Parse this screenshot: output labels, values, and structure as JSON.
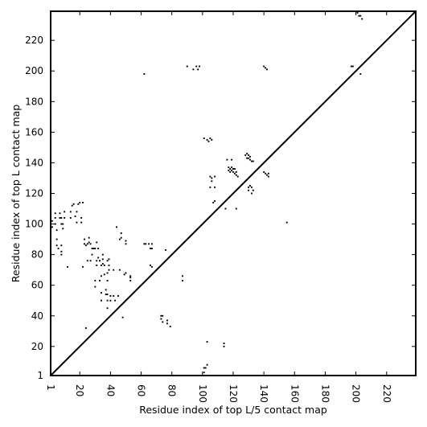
{
  "chart_data": {
    "type": "scatter",
    "title": "",
    "xlabel": "Residue index of top L/5 contact map",
    "ylabel": "Residue index of top L contact map",
    "xlim": [
      1,
      239
    ],
    "ylim": [
      1,
      239
    ],
    "x_ticks": [
      1,
      20,
      40,
      60,
      80,
      100,
      120,
      140,
      160,
      180,
      200,
      220
    ],
    "y_ticks": [
      1,
      20,
      40,
      60,
      80,
      100,
      120,
      140,
      160,
      180,
      200,
      220
    ],
    "x_tick_labels": [
      "1",
      "20",
      "40",
      "60",
      "80",
      "100",
      "120",
      "140",
      "160",
      "180",
      "200",
      "220"
    ],
    "y_tick_labels": [
      "1",
      "20",
      "40",
      "60",
      "80",
      "100",
      "120",
      "140",
      "160",
      "180",
      "200",
      "220"
    ],
    "grid": false,
    "diagonal": true,
    "marker_color": "#000000",
    "series": [
      {
        "values": [
          [
            2,
            98
          ],
          [
            2,
            102
          ],
          [
            4,
            100
          ],
          [
            4,
            104
          ],
          [
            4,
            107
          ],
          [
            5,
            86
          ],
          [
            5,
            90
          ],
          [
            5,
            96
          ],
          [
            7,
            104
          ],
          [
            7,
            107
          ],
          [
            8,
            100
          ],
          [
            8,
            104
          ],
          [
            6,
            84
          ],
          [
            8,
            86
          ],
          [
            8,
            80
          ],
          [
            8,
            82
          ],
          [
            9,
            97
          ],
          [
            9,
            100
          ],
          [
            10,
            104
          ],
          [
            10,
            108
          ],
          [
            12,
            72
          ],
          [
            14,
            104
          ],
          [
            14,
            108
          ],
          [
            15,
            112
          ],
          [
            16,
            113
          ],
          [
            17,
            105
          ],
          [
            18,
            101
          ],
          [
            18,
            108
          ],
          [
            19,
            113
          ],
          [
            20,
            114
          ],
          [
            21,
            101
          ],
          [
            21,
            104
          ],
          [
            22,
            114
          ],
          [
            22,
            72
          ],
          [
            23,
            87
          ],
          [
            23,
            90
          ],
          [
            24,
            86
          ],
          [
            24,
            32
          ],
          [
            25,
            76
          ],
          [
            25,
            87
          ],
          [
            26,
            88
          ],
          [
            26,
            91
          ],
          [
            27,
            76
          ],
          [
            27,
            87
          ],
          [
            28,
            80
          ],
          [
            28,
            84
          ],
          [
            29,
            84
          ],
          [
            30,
            59
          ],
          [
            30,
            63
          ],
          [
            30,
            84
          ],
          [
            31,
            73
          ],
          [
            31,
            76
          ],
          [
            31,
            88
          ],
          [
            32,
            78
          ],
          [
            32,
            84
          ],
          [
            33,
            63
          ],
          [
            33,
            76
          ],
          [
            34,
            50
          ],
          [
            34,
            55
          ],
          [
            34,
            66
          ],
          [
            34,
            73
          ],
          [
            35,
            74
          ],
          [
            35,
            77
          ],
          [
            35,
            80
          ],
          [
            36,
            67
          ],
          [
            36,
            73
          ],
          [
            37,
            54
          ],
          [
            37,
            57
          ],
          [
            38,
            45
          ],
          [
            38,
            50
          ],
          [
            38,
            54
          ],
          [
            38,
            63
          ],
          [
            38,
            68
          ],
          [
            38,
            76
          ],
          [
            39,
            70
          ],
          [
            39,
            73
          ],
          [
            39,
            77
          ],
          [
            40,
            50
          ],
          [
            40,
            53
          ],
          [
            42,
            70
          ],
          [
            42,
            53
          ],
          [
            43,
            50
          ],
          [
            44,
            98
          ],
          [
            45,
            53
          ],
          [
            46,
            70
          ],
          [
            46,
            90
          ],
          [
            47,
            94
          ],
          [
            47,
            91
          ],
          [
            48,
            39
          ],
          [
            49,
            67
          ],
          [
            50,
            87
          ],
          [
            50,
            68
          ],
          [
            50,
            89
          ],
          [
            53,
            66
          ],
          [
            53,
            65
          ],
          [
            53,
            63
          ],
          [
            62,
            87
          ],
          [
            62,
            198
          ],
          [
            63,
            87
          ],
          [
            65,
            87
          ],
          [
            66,
            84
          ],
          [
            66,
            73
          ],
          [
            67,
            72
          ],
          [
            67,
            84
          ],
          [
            67,
            87
          ],
          [
            73,
            38
          ],
          [
            73,
            40
          ],
          [
            74,
            36
          ],
          [
            74,
            40
          ],
          [
            76,
            83
          ],
          [
            77,
            35
          ],
          [
            77,
            37
          ],
          [
            79,
            33
          ],
          [
            87,
            63
          ],
          [
            87,
            66
          ],
          [
            90,
            203
          ],
          [
            94,
            201
          ],
          [
            96,
            203
          ],
          [
            97,
            201
          ],
          [
            98,
            203
          ],
          [
            101,
            3
          ],
          [
            101,
            6
          ],
          [
            101,
            156
          ],
          [
            102,
            6
          ],
          [
            103,
            8
          ],
          [
            103,
            23
          ],
          [
            103,
            155
          ],
          [
            104,
            154
          ],
          [
            105,
            131
          ],
          [
            105,
            124
          ],
          [
            105,
            156
          ],
          [
            106,
            128
          ],
          [
            106,
            130
          ],
          [
            106,
            155
          ],
          [
            107,
            114
          ],
          [
            108,
            115
          ],
          [
            108,
            124
          ],
          [
            108,
            131
          ],
          [
            114,
            20
          ],
          [
            114,
            22
          ],
          [
            115,
            110
          ],
          [
            116,
            142
          ],
          [
            117,
            137
          ],
          [
            117,
            135
          ],
          [
            118,
            136
          ],
          [
            118,
            134
          ],
          [
            119,
            142
          ],
          [
            119,
            137
          ],
          [
            119,
            135
          ],
          [
            120,
            136
          ],
          [
            120,
            134
          ],
          [
            121,
            136
          ],
          [
            121,
            133
          ],
          [
            122,
            134
          ],
          [
            122,
            110
          ],
          [
            122,
            132
          ],
          [
            123,
            131
          ],
          [
            128,
            145
          ],
          [
            129,
            143
          ],
          [
            129,
            146
          ],
          [
            130,
            124
          ],
          [
            130,
            122
          ],
          [
            130,
            143
          ],
          [
            130,
            145
          ],
          [
            131,
            125
          ],
          [
            131,
            142
          ],
          [
            131,
            144
          ],
          [
            132,
            124
          ],
          [
            132,
            120
          ],
          [
            132,
            141
          ],
          [
            133,
            141
          ],
          [
            133,
            122
          ],
          [
            140,
            203
          ],
          [
            140,
            134
          ],
          [
            141,
            133
          ],
          [
            141,
            202
          ],
          [
            142,
            201
          ],
          [
            142,
            132
          ],
          [
            143,
            131
          ],
          [
            143,
            133
          ],
          [
            155,
            101
          ],
          [
            197,
            203
          ],
          [
            198,
            203
          ],
          [
            201,
            238
          ],
          [
            202,
            236
          ],
          [
            203,
            236
          ],
          [
            204,
            234
          ],
          [
            203,
            198
          ]
        ]
      }
    ]
  }
}
